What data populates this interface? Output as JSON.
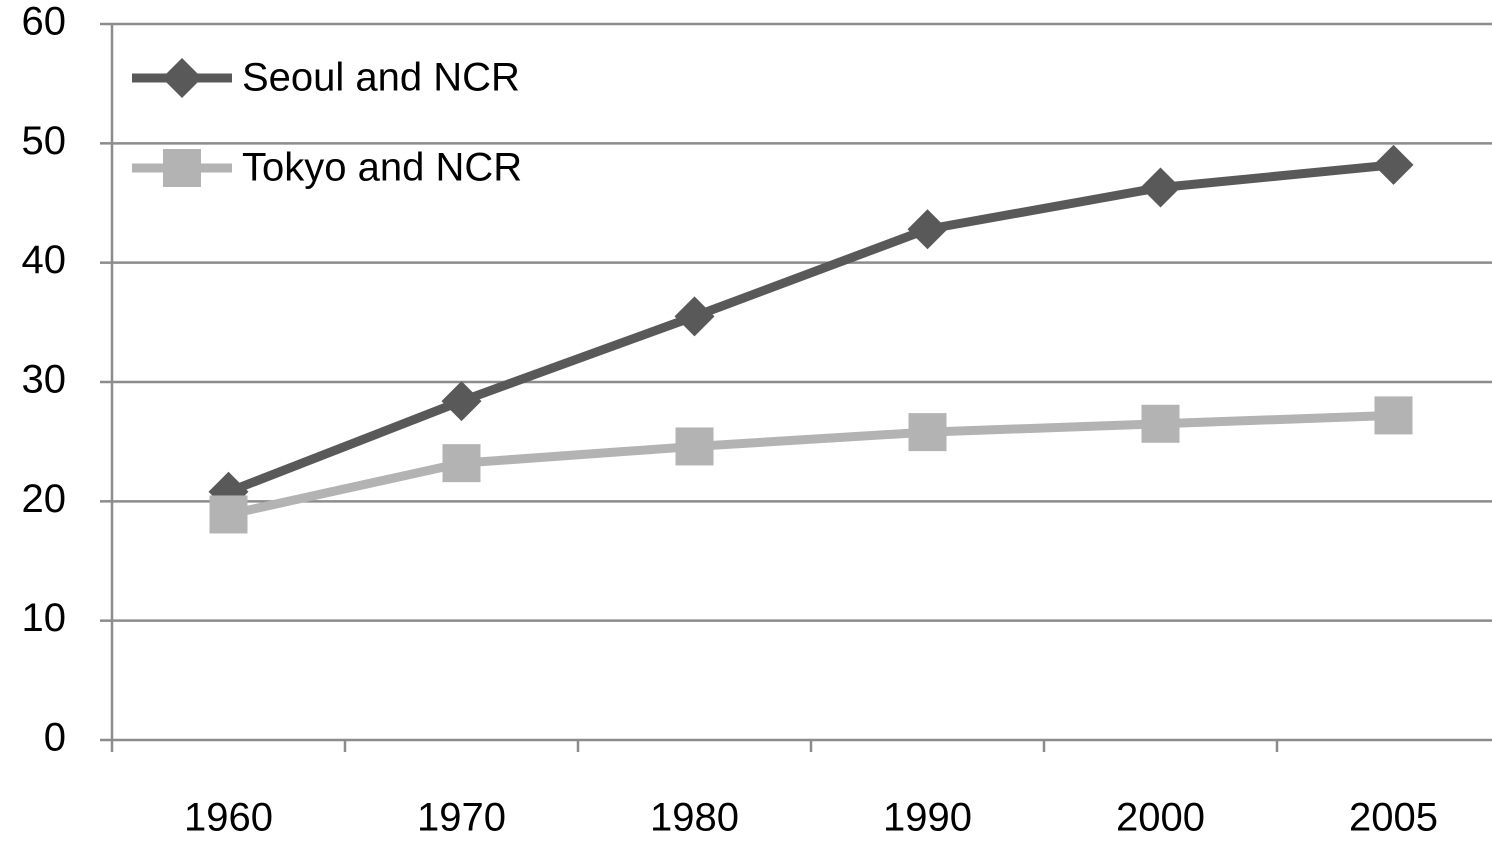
{
  "chart_data": {
    "type": "line",
    "categories": [
      "1960",
      "1970",
      "1980",
      "1990",
      "2000",
      "2005"
    ],
    "series": [
      {
        "name": "Seoul and NCR",
        "color": "#595959",
        "marker": "diamond",
        "values": [
          20.8,
          28.4,
          35.5,
          42.8,
          46.3,
          48.2
        ]
      },
      {
        "name": "Tokyo and NCR",
        "color": "#b3b3b3",
        "marker": "square",
        "values": [
          18.9,
          23.2,
          24.6,
          25.8,
          26.5,
          27.2
        ]
      }
    ],
    "ylim": [
      0,
      60
    ],
    "yticks": [
      0,
      10,
      20,
      30,
      40,
      50,
      60
    ],
    "grid": true,
    "legend": "top-left"
  }
}
